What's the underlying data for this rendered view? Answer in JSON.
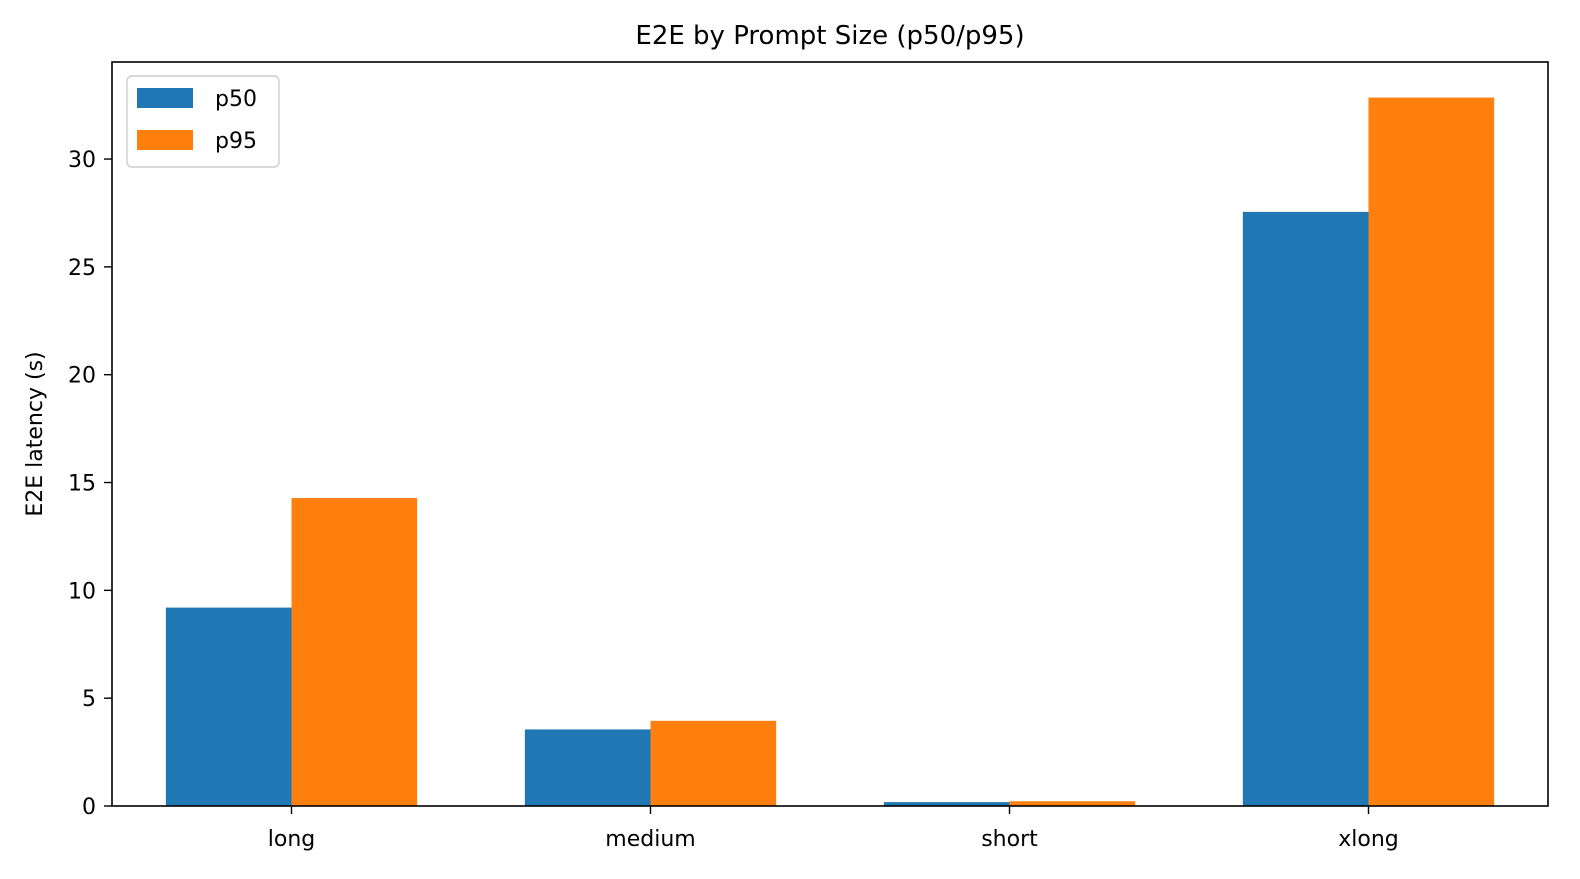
{
  "chart_data": {
    "type": "bar",
    "title": "E2E by Prompt Size (p50/p95)",
    "xlabel": "",
    "ylabel": "E2E latency (s)",
    "categories": [
      "long",
      "medium",
      "short",
      "xlong"
    ],
    "series": [
      {
        "name": "p50",
        "color": "#1f77b4",
        "values": [
          9.2,
          3.55,
          0.18,
          27.55
        ]
      },
      {
        "name": "p95",
        "color": "#ff7f0e",
        "values": [
          14.28,
          3.95,
          0.22,
          32.85
        ]
      }
    ],
    "ylim": [
      0,
      34.5
    ],
    "yticks": [
      0,
      5,
      10,
      15,
      20,
      25,
      30
    ],
    "grid": false,
    "legend_position": "top-left"
  }
}
